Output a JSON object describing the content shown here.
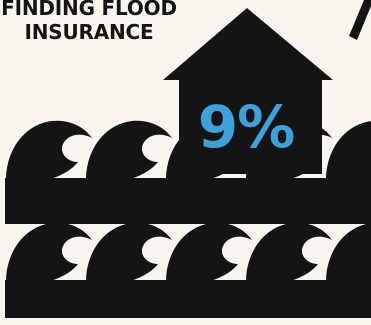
{
  "title": {
    "line1": "FINDING FLOOD",
    "line2": "INSURANCE"
  },
  "stat": {
    "value": "9%"
  },
  "colors": {
    "background": "#f9f6ef",
    "ink": "#141414",
    "accent": "#3da2dc"
  },
  "icons": {
    "house": "house-icon",
    "waves": "flood-waves-icon"
  }
}
